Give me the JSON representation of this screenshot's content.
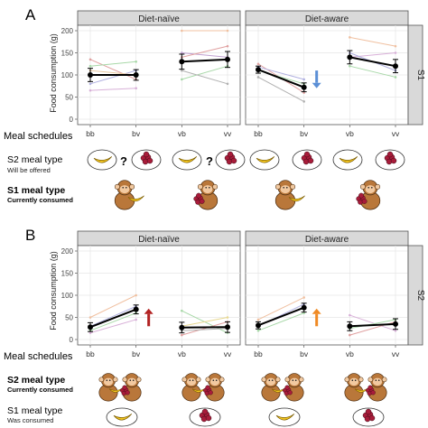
{
  "panels": [
    {
      "letter": "A",
      "row_strip": "S1",
      "y_axis_label": "Food consumption (g)",
      "schedules_label": "Meal schedules",
      "legend": [
        {
          "bold": true,
          "title": "S2 meal type",
          "sub": "Will be offered"
        },
        {
          "bold": true,
          "title": "S1 meal type",
          "sub": "Currently consumed"
        }
      ]
    },
    {
      "letter": "B",
      "row_strip": "S2",
      "y_axis_label": "Food consumption (g)",
      "schedules_label": "Meal schedules",
      "legend": [
        {
          "bold": true,
          "title": "S2 meal type",
          "sub": "Currently consumed"
        },
        {
          "bold": false,
          "title": "S1 meal type",
          "sub": "Was consumed"
        }
      ]
    }
  ],
  "chart_data": [
    {
      "type": "line",
      "panel": "A",
      "facet": "Diet-naïve",
      "row": "S1",
      "categories": [
        "bb",
        "bv",
        "vb",
        "vv"
      ],
      "ylim": [
        0,
        200
      ],
      "yticks": [
        0,
        50,
        100,
        150,
        200
      ],
      "grid": true,
      "mean_lines": [
        {
          "x": [
            "bb",
            "bv"
          ],
          "y": [
            100,
            100
          ],
          "err": [
            15,
            12
          ]
        },
        {
          "x": [
            "vb",
            "vv"
          ],
          "y": [
            130,
            135
          ],
          "err": [
            17,
            18
          ]
        }
      ],
      "individual_lines": [
        {
          "x": [
            "bb",
            "bv"
          ],
          "y": [
            135,
            90
          ],
          "color": "#e0a0a0"
        },
        {
          "x": [
            "bb",
            "bv"
          ],
          "y": [
            120,
            130
          ],
          "color": "#a8d8a8"
        },
        {
          "x": [
            "bb",
            "bv"
          ],
          "y": [
            80,
            110
          ],
          "color": "#b0b0e0"
        },
        {
          "x": [
            "bb",
            "bv"
          ],
          "y": [
            65,
            70
          ],
          "color": "#d8b0d8"
        },
        {
          "x": [
            "bb",
            "bv"
          ],
          "y": [
            110,
            100
          ],
          "color": "#e8c8a0"
        },
        {
          "x": [
            "vb",
            "vv"
          ],
          "y": [
            200,
            200
          ],
          "color": "#f0c0a0"
        },
        {
          "x": [
            "vb",
            "vv"
          ],
          "y": [
            150,
            140
          ],
          "color": "#c0a0d0"
        },
        {
          "x": [
            "vb",
            "vv"
          ],
          "y": [
            90,
            120
          ],
          "color": "#a8d8a8"
        },
        {
          "x": [
            "vb",
            "vv"
          ],
          "y": [
            110,
            80
          ],
          "color": "#b0b0b0"
        },
        {
          "x": [
            "vb",
            "vv"
          ],
          "y": [
            140,
            165
          ],
          "color": "#e0a0a0"
        }
      ],
      "annotations": []
    },
    {
      "type": "line",
      "panel": "A",
      "facet": "Diet-aware",
      "row": "S1",
      "categories": [
        "bb",
        "bv",
        "vb",
        "vv"
      ],
      "ylim": [
        0,
        200
      ],
      "yticks": [
        0,
        50,
        100,
        150,
        200
      ],
      "grid": true,
      "mean_lines": [
        {
          "x": [
            "bb",
            "bv"
          ],
          "y": [
            112,
            72
          ],
          "err": [
            8,
            10
          ]
        },
        {
          "x": [
            "vb",
            "vv"
          ],
          "y": [
            140,
            120
          ],
          "err": [
            15,
            15
          ]
        }
      ],
      "individual_lines": [
        {
          "x": [
            "bb",
            "bv"
          ],
          "y": [
            125,
            60
          ],
          "color": "#e0a0a0"
        },
        {
          "x": [
            "bb",
            "bv"
          ],
          "y": [
            110,
            80
          ],
          "color": "#a8d8a8"
        },
        {
          "x": [
            "bb",
            "bv"
          ],
          "y": [
            95,
            40
          ],
          "color": "#b0b0b0"
        },
        {
          "x": [
            "bb",
            "bv"
          ],
          "y": [
            118,
            90
          ],
          "color": "#b0b0e0"
        },
        {
          "x": [
            "vb",
            "vv"
          ],
          "y": [
            185,
            165
          ],
          "color": "#f0c0a0"
        },
        {
          "x": [
            "vb",
            "vv"
          ],
          "y": [
            140,
            150
          ],
          "color": "#d8b0d8"
        },
        {
          "x": [
            "vb",
            "vv"
          ],
          "y": [
            120,
            95
          ],
          "color": "#a8d8a8"
        },
        {
          "x": [
            "vb",
            "vv"
          ],
          "y": [
            150,
            110
          ],
          "color": "#b0b0e0"
        }
      ],
      "annotations": [
        {
          "kind": "arrow-down",
          "x": "bv",
          "y_from": 110,
          "y_to": 70,
          "color": "#5b8fd6"
        }
      ]
    },
    {
      "type": "line",
      "panel": "B",
      "facet": "Diet-naïve",
      "row": "S2",
      "categories": [
        "bb",
        "bv",
        "vb",
        "vv"
      ],
      "ylim": [
        0,
        200
      ],
      "yticks": [
        0,
        50,
        100,
        150,
        200
      ],
      "grid": true,
      "mean_lines": [
        {
          "x": [
            "bb",
            "bv"
          ],
          "y": [
            28,
            68
          ],
          "err": [
            10,
            10
          ]
        },
        {
          "x": [
            "vb",
            "vv"
          ],
          "y": [
            27,
            28
          ],
          "err": [
            12,
            12
          ]
        }
      ],
      "individual_lines": [
        {
          "x": [
            "bb",
            "bv"
          ],
          "y": [
            50,
            100
          ],
          "color": "#f0c0a0"
        },
        {
          "x": [
            "bb",
            "bv"
          ],
          "y": [
            20,
            60
          ],
          "color": "#a8d8a8"
        },
        {
          "x": [
            "bb",
            "bv"
          ],
          "y": [
            30,
            75
          ],
          "color": "#b0b0e0"
        },
        {
          "x": [
            "bb",
            "bv"
          ],
          "y": [
            15,
            45
          ],
          "color": "#d8b0d8"
        },
        {
          "x": [
            "vb",
            "vv"
          ],
          "y": [
            65,
            15
          ],
          "color": "#a8d8a8"
        },
        {
          "x": [
            "vb",
            "vv"
          ],
          "y": [
            10,
            40
          ],
          "color": "#e0a0a0"
        },
        {
          "x": [
            "vb",
            "vv"
          ],
          "y": [
            30,
            50
          ],
          "color": "#e8d890"
        },
        {
          "x": [
            "vb",
            "vv"
          ],
          "y": [
            20,
            25
          ],
          "color": "#b0b0b0"
        }
      ],
      "annotations": [
        {
          "kind": "arrow-up",
          "x": "bv",
          "y_from": 30,
          "y_to": 70,
          "color": "#b22222"
        }
      ]
    },
    {
      "type": "line",
      "panel": "B",
      "facet": "Diet-aware",
      "row": "S2",
      "categories": [
        "bb",
        "bv",
        "vb",
        "vv"
      ],
      "ylim": [
        0,
        200
      ],
      "yticks": [
        0,
        50,
        100,
        150,
        200
      ],
      "grid": true,
      "mean_lines": [
        {
          "x": [
            "bb",
            "bv"
          ],
          "y": [
            32,
            72
          ],
          "err": [
            8,
            10
          ]
        },
        {
          "x": [
            "vb",
            "vv"
          ],
          "y": [
            30,
            35
          ],
          "err": [
            10,
            12
          ]
        }
      ],
      "individual_lines": [
        {
          "x": [
            "bb",
            "bv"
          ],
          "y": [
            45,
            95
          ],
          "color": "#f0c0a0"
        },
        {
          "x": [
            "bb",
            "bv"
          ],
          "y": [
            20,
            60
          ],
          "color": "#a8d8a8"
        },
        {
          "x": [
            "bb",
            "bv"
          ],
          "y": [
            30,
            80
          ],
          "color": "#b0b0e0"
        },
        {
          "x": [
            "vb",
            "vv"
          ],
          "y": [
            55,
            20
          ],
          "color": "#d8b0d8"
        },
        {
          "x": [
            "vb",
            "vv"
          ],
          "y": [
            10,
            40
          ],
          "color": "#e0a0a0"
        },
        {
          "x": [
            "vb",
            "vv"
          ],
          "y": [
            25,
            45
          ],
          "color": "#a8d8a8"
        }
      ],
      "annotations": [
        {
          "kind": "arrow-up",
          "x": "bv",
          "y_from": 30,
          "y_to": 70,
          "color": "#f08a24"
        }
      ]
    }
  ]
}
